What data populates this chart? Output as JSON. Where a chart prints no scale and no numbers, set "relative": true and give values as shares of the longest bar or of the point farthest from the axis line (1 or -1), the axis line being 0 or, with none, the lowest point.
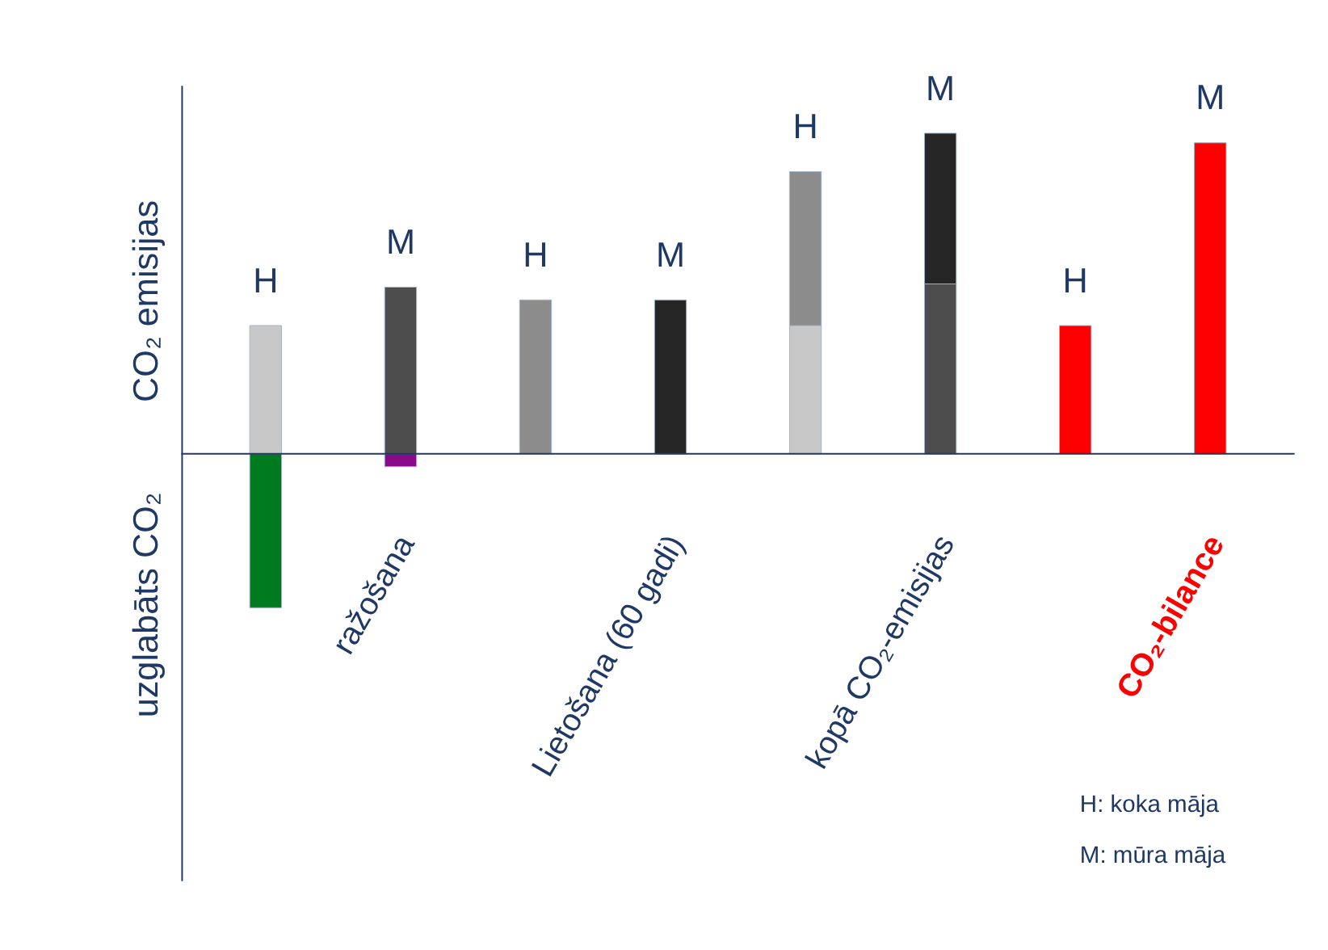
{
  "chart_data": {
    "type": "bar",
    "relative": true,
    "stacked": true,
    "categories": [
      null,
      null,
      null,
      null,
      null,
      null,
      null,
      null
    ],
    "series": [
      {
        "colors": [
          "#c8c8c8",
          "#4d4d4d",
          "#8c8c8c",
          "#262626",
          "#c8c8c8",
          "#4d4d4d",
          "#ff0000",
          "#ff0000"
        ],
        "values": [
          0.4,
          0.52,
          0.48,
          0.48,
          0.4,
          0.53,
          0.4,
          0.97
        ]
      },
      {
        "colors": [
          null,
          null,
          null,
          null,
          "#8c8c8c",
          "#262626",
          null,
          null
        ],
        "values": [
          null,
          null,
          null,
          null,
          0.48,
          0.47,
          null,
          null
        ]
      },
      {
        "colors": [
          "#007a1e",
          "#8b0a8b",
          null,
          null,
          null,
          null,
          null,
          null
        ],
        "values": [
          -0.48,
          -0.04,
          null,
          null,
          null,
          null,
          null,
          null
        ]
      }
    ],
    "ref_lines": [
      {
        "axis": "y",
        "value": 0,
        "color": "#1f3864"
      }
    ],
    "annotations": [
      "ražošana",
      "Lietošana (60 gadi)",
      "kopā CO₂-emisijas",
      "CO₂-bilance",
      "CO₂ emisijas",
      "uzglabāts CO₂",
      "H: koka māja",
      "M: mūra māja",
      "H",
      "M",
      "H",
      "M",
      "H",
      "M",
      "H",
      "M"
    ]
  }
}
